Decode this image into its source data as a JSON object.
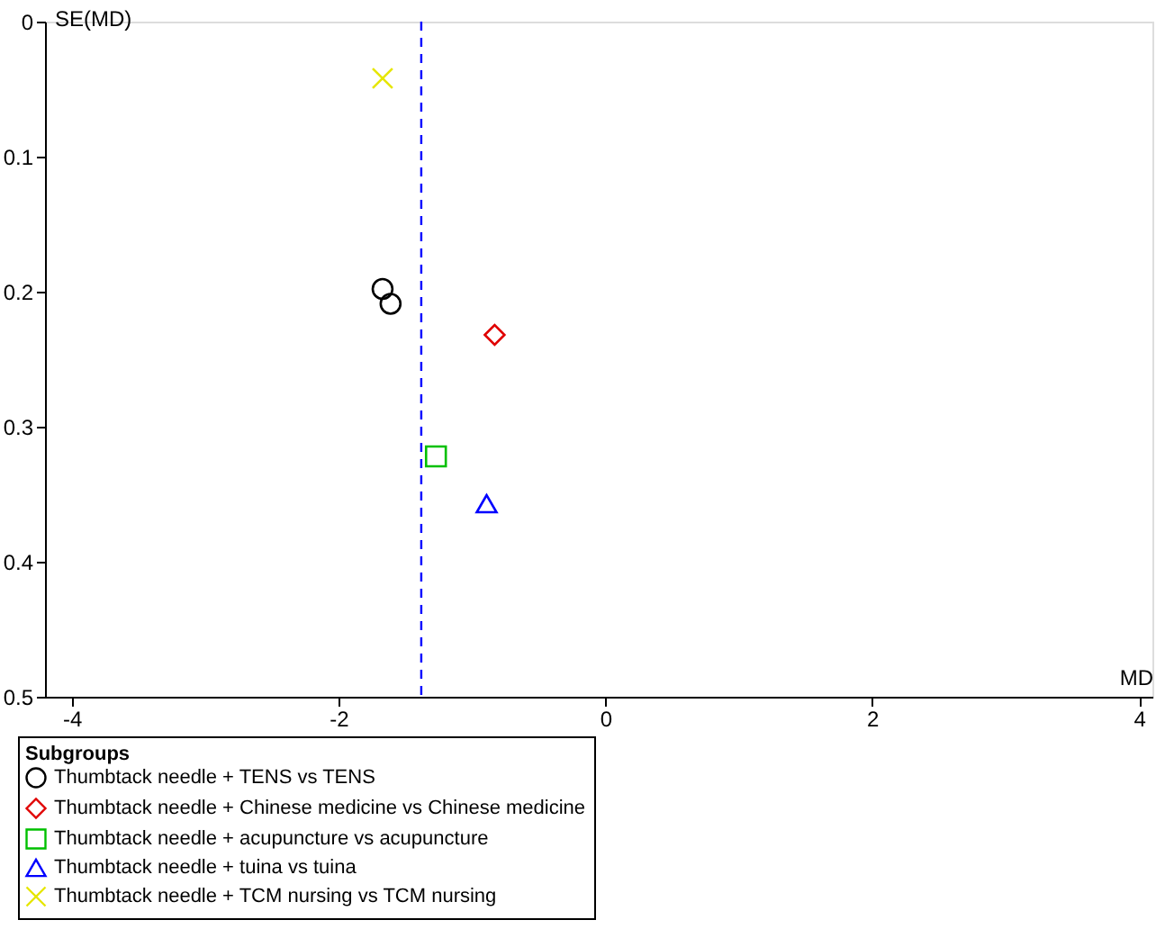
{
  "chart_data": {
    "type": "scatter",
    "xlabel": "MD",
    "ylabel": "SE(MD)",
    "legend_title": "Subgroups",
    "xlim": [
      -4.2,
      4.1
    ],
    "xticks": [
      -4,
      -2,
      0,
      2,
      4
    ],
    "ylim": [
      0.5,
      0
    ],
    "yticks": [
      0,
      0.1,
      0.2,
      0.3,
      0.4,
      0.5
    ],
    "grid": false,
    "legend": "bottom",
    "ref_lines": [
      {
        "axis": "x",
        "value": -1.38,
        "color": "#0000ff",
        "line_style": "dashed"
      }
    ],
    "series": [
      {
        "name": "Thumbtack needle + TENS vs TENS",
        "color": "#000000",
        "marker": "circle",
        "x": [
          -1.67,
          -1.61
        ],
        "values": [
          0.198,
          0.209
        ]
      },
      {
        "name": "Thumbtack needle + Chinese medicine vs Chinese medicine",
        "color": "#e00000",
        "marker": "diamond",
        "x": [
          -0.83
        ],
        "values": [
          0.232
        ]
      },
      {
        "name": "Thumbtack needle + acupuncture vs acupuncture",
        "color": "#00c000",
        "marker": "square",
        "x": [
          -1.27
        ],
        "values": [
          0.322
        ]
      },
      {
        "name": "Thumbtack needle + tuina vs tuina",
        "color": "#0000ff",
        "marker": "triangle",
        "x": [
          -0.89
        ],
        "values": [
          0.357
        ]
      },
      {
        "name": "Thumbtack needle + TCM nursing vs TCM nursing",
        "color": "#e6e600",
        "marker": "cross",
        "x": [
          -1.67
        ],
        "values": [
          0.042
        ]
      }
    ]
  }
}
